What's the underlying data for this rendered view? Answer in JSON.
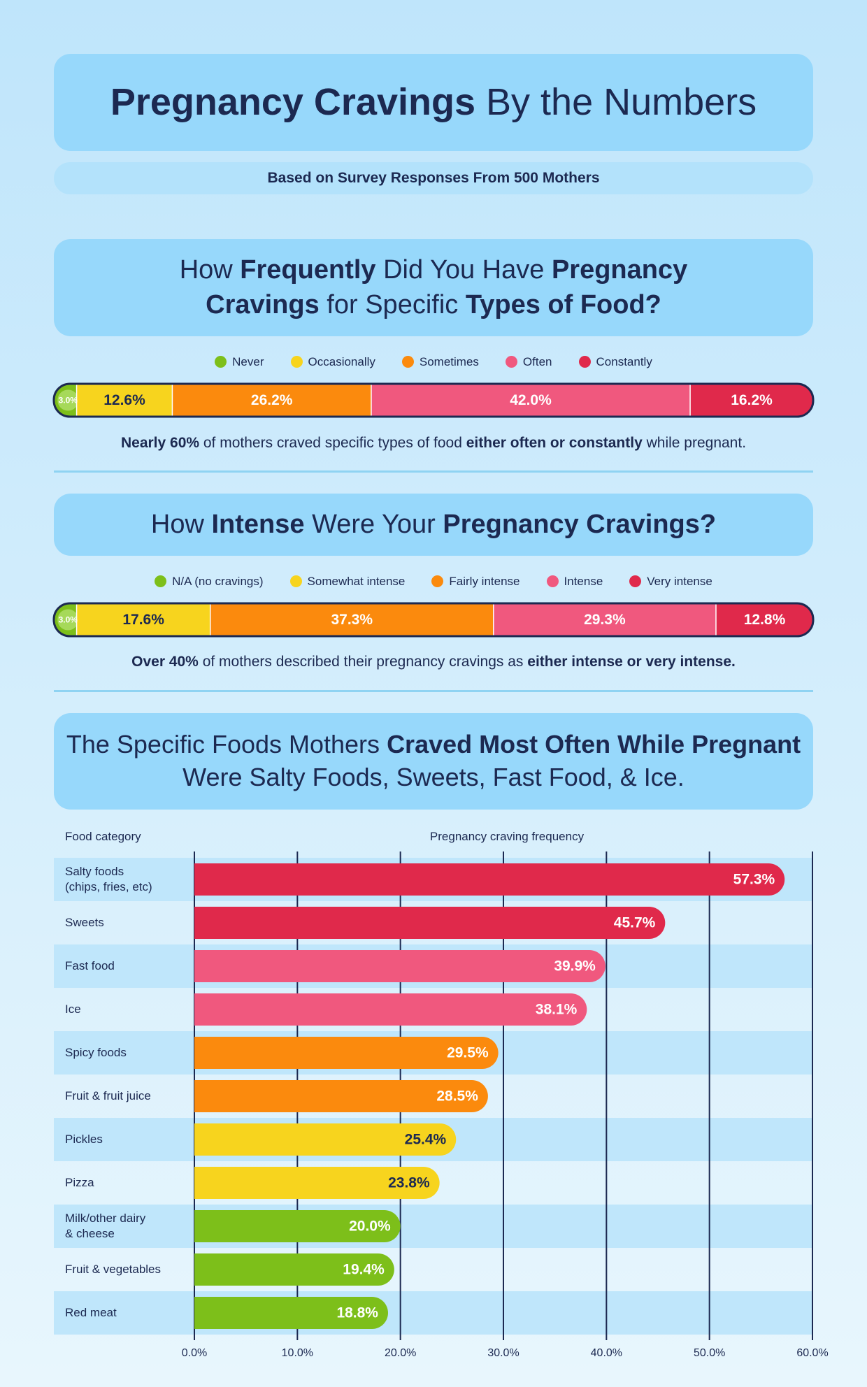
{
  "header": {
    "title": [
      {
        "text": "Pregnancy Cravings",
        "bold": true
      },
      {
        "text": " By the Numbers",
        "bold": false
      }
    ],
    "subtitle": "Based on Survey Responses From 500 Mothers"
  },
  "chart_data": [
    {
      "type": "stacked_bar",
      "title": [
        {
          "text": "How ",
          "bold": false
        },
        {
          "text": "Frequently",
          "bold": true
        },
        {
          "text": " Did You Have ",
          "bold": false
        },
        {
          "text": "Pregnancy Cravings",
          "bold": true
        },
        {
          "text": " for Specific ",
          "bold": false
        },
        {
          "text": "Types of Food?",
          "bold": true
        }
      ],
      "series": [
        {
          "name": "Never",
          "color": "#7dbf1a",
          "values": [
            3.0
          ],
          "value_labels": [
            "3.0%"
          ]
        },
        {
          "name": "Occasionally",
          "color": "#f7d41e",
          "values": [
            12.6
          ],
          "value_labels": [
            "12.6%"
          ]
        },
        {
          "name": "Sometimes",
          "color": "#fb8a0d",
          "values": [
            26.2
          ],
          "value_labels": [
            "26.2%"
          ]
        },
        {
          "name": "Often",
          "color": "#f0587e",
          "values": [
            42.0
          ],
          "value_labels": [
            "42.0%"
          ]
        },
        {
          "name": "Constantly",
          "color": "#e0294b",
          "values": [
            16.2
          ],
          "value_labels": [
            "16.2%"
          ]
        }
      ],
      "note": [
        {
          "text": "Nearly 60%",
          "bold": true
        },
        {
          "text": " of mothers craved specific types of food ",
          "bold": false
        },
        {
          "text": "either often or constantly",
          "bold": true
        },
        {
          "text": " while pregnant.",
          "bold": false
        }
      ]
    },
    {
      "type": "stacked_bar",
      "title": [
        {
          "text": "How ",
          "bold": false
        },
        {
          "text": "Intense",
          "bold": true
        },
        {
          "text": " Were Your ",
          "bold": false
        },
        {
          "text": "Pregnancy Cravings?",
          "bold": true
        }
      ],
      "series": [
        {
          "name": "N/A (no cravings)",
          "color": "#7dbf1a",
          "values": [
            3.0
          ],
          "value_labels": [
            "3.0%"
          ]
        },
        {
          "name": "Somewhat intense",
          "color": "#f7d41e",
          "values": [
            17.6
          ],
          "value_labels": [
            "17.6%"
          ]
        },
        {
          "name": "Fairly intense",
          "color": "#fb8a0d",
          "values": [
            37.3
          ],
          "value_labels": [
            "37.3%"
          ]
        },
        {
          "name": "Intense",
          "color": "#f0587e",
          "values": [
            29.3
          ],
          "value_labels": [
            "29.3%"
          ]
        },
        {
          "name": "Very intense",
          "color": "#e0294b",
          "values": [
            12.8
          ],
          "value_labels": [
            "12.8%"
          ]
        }
      ],
      "note": [
        {
          "text": "Over 40%",
          "bold": true
        },
        {
          "text": " of mothers described their pregnancy cravings as ",
          "bold": false
        },
        {
          "text": "either intense or very intense.",
          "bold": true
        }
      ]
    },
    {
      "type": "bar",
      "title": [
        {
          "text": "The Specific Foods Mothers ",
          "bold": false
        },
        {
          "text": "Craved Most Often While Pregnant",
          "bold": true
        },
        {
          "text": " Were Salty Foods, Sweets, Fast Food, & Ice.",
          "bold": false
        }
      ],
      "y_label": "Food category",
      "x_label": "Pregnancy craving frequency",
      "categories": [
        "Salty foods\n(chips, fries, etc)",
        "Sweets",
        "Fast food",
        "Ice",
        "Spicy foods",
        "Fruit & fruit juice",
        "Pickles",
        "Pizza",
        "Milk/other dairy\n& cheese",
        "Fruit & vegetables",
        "Red meat"
      ],
      "values": [
        57.3,
        45.7,
        39.9,
        38.1,
        29.5,
        28.5,
        25.4,
        23.8,
        20.0,
        19.4,
        18.8
      ],
      "value_labels": [
        "57.3%",
        "45.7%",
        "39.9%",
        "38.1%",
        "29.5%",
        "28.5%",
        "25.4%",
        "23.8%",
        "20.0%",
        "19.4%",
        "18.8%"
      ],
      "colors": [
        "#e0294b",
        "#e0294b",
        "#f0587e",
        "#f0587e",
        "#fb8a0d",
        "#fb8a0d",
        "#f7d41e",
        "#f7d41e",
        "#7dbf1a",
        "#7dbf1a",
        "#7dbf1a"
      ],
      "xlim": [
        0,
        60
      ],
      "xticks": [
        {
          "value": 0,
          "label": "0.0%"
        },
        {
          "value": 10,
          "label": "10.0%"
        },
        {
          "value": 20,
          "label": "20.0%"
        },
        {
          "value": 30,
          "label": "30.0%"
        },
        {
          "value": 40,
          "label": "40.0%"
        },
        {
          "value": 50,
          "label": "50.0%"
        },
        {
          "value": 60,
          "label": "60.0%"
        }
      ],
      "grid": true
    }
  ]
}
